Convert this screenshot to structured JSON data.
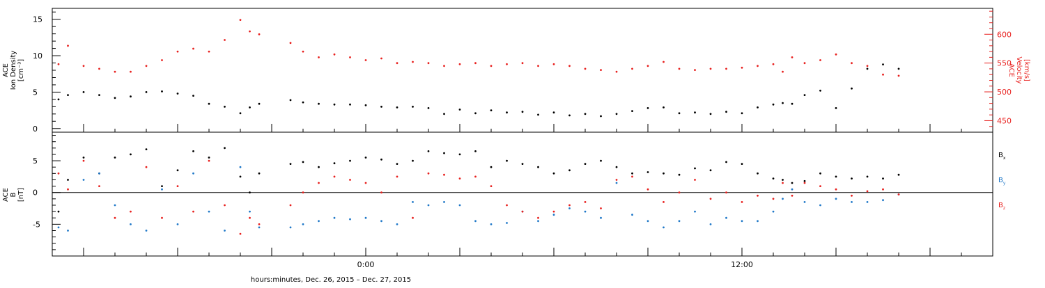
{
  "xaxis_title": "hours:minutes, Dec. 26, 2015 – Dec. 27, 2015",
  "colors": {
    "black": "#000000",
    "red": "#e8201e",
    "blue": "#1f78c8"
  },
  "chart_data": [
    {
      "type": "scatter",
      "panel": "top",
      "ylabel_left": [
        "ACE",
        "Ion Density",
        "[cm⁻³]"
      ],
      "ylabel_right": [
        "ACE",
        "Velocity",
        "[km/s]"
      ],
      "xlim": [
        -10,
        20
      ],
      "x_tick_labels": [
        {
          "x": 0,
          "label": "0:00"
        },
        {
          "x": 12,
          "label": "12:00"
        }
      ],
      "ylim_left": [
        -0.5,
        16.5
      ],
      "yticks_left": [
        0,
        5,
        10,
        15
      ],
      "ylim_right": [
        430,
        645
      ],
      "yticks_right": [
        450,
        500,
        550,
        600
      ],
      "series": [
        {
          "quantity": "ion_density",
          "axis": "left",
          "color": "#000000",
          "x": [
            -9.8,
            -9.5,
            -9.0,
            -8.5,
            -8.0,
            -7.5,
            -7.0,
            -6.5,
            -6.0,
            -5.5,
            -5.0,
            -4.5,
            -4.0,
            -3.7,
            -3.4,
            -2.4,
            -2.0,
            -1.5,
            -1.0,
            -0.5,
            0.0,
            0.5,
            1.0,
            1.5,
            2.0,
            2.5,
            3.0,
            3.5,
            4.0,
            4.5,
            5.0,
            5.5,
            6.0,
            6.5,
            7.0,
            7.5,
            8.0,
            8.5,
            9.0,
            9.5,
            10.0,
            10.5,
            11.0,
            11.5,
            12.0,
            12.5,
            13.0,
            13.3,
            13.6,
            14.0,
            14.5,
            15.0,
            15.5,
            16.0,
            16.5,
            17.0
          ],
          "y": [
            4.0,
            4.6,
            5.0,
            4.6,
            4.2,
            4.4,
            5.0,
            5.1,
            4.8,
            4.5,
            3.4,
            3.0,
            2.1,
            2.9,
            3.4,
            3.9,
            3.6,
            3.4,
            3.3,
            3.3,
            3.2,
            3.0,
            2.9,
            3.0,
            2.8,
            2.0,
            2.6,
            2.1,
            2.5,
            2.2,
            2.3,
            1.9,
            2.2,
            1.8,
            2.0,
            1.7,
            2.0,
            2.4,
            2.8,
            2.9,
            2.1,
            2.2,
            2.0,
            2.3,
            2.1,
            2.9,
            3.3,
            3.5,
            3.4,
            4.6,
            5.2,
            2.8,
            5.5,
            8.2,
            8.8,
            8.2
          ]
        },
        {
          "quantity": "velocity",
          "axis": "right",
          "color": "#e8201e",
          "x": [
            -9.8,
            -9.5,
            -9.0,
            -8.5,
            -8.0,
            -7.5,
            -7.0,
            -6.5,
            -6.0,
            -5.5,
            -5.0,
            -4.5,
            -4.0,
            -3.7,
            -3.4,
            -2.4,
            -2.0,
            -1.5,
            -1.0,
            -0.5,
            0.0,
            0.5,
            1.0,
            1.5,
            2.0,
            2.5,
            3.0,
            3.5,
            4.0,
            4.5,
            5.0,
            5.5,
            6.0,
            6.5,
            7.0,
            7.5,
            8.0,
            8.5,
            9.0,
            9.5,
            10.0,
            10.5,
            11.0,
            11.5,
            12.0,
            12.5,
            13.0,
            13.3,
            13.6,
            14.0,
            14.5,
            15.0,
            15.5,
            16.0,
            16.5,
            17.0
          ],
          "y": [
            548,
            580,
            545,
            540,
            535,
            535,
            545,
            555,
            570,
            575,
            570,
            590,
            625,
            605,
            600,
            585,
            570,
            560,
            565,
            560,
            555,
            558,
            550,
            552,
            550,
            545,
            548,
            550,
            545,
            548,
            550,
            545,
            548,
            545,
            540,
            538,
            535,
            540,
            545,
            552,
            540,
            538,
            540,
            540,
            542,
            545,
            548,
            535,
            560,
            550,
            555,
            565,
            550,
            545,
            530,
            528
          ]
        }
      ]
    },
    {
      "type": "scatter",
      "panel": "bottom",
      "ylabel_left": [
        "ACE",
        "B",
        "[nT]"
      ],
      "xlim": [
        -10,
        20
      ],
      "x_tick_labels": [
        {
          "x": 0,
          "label": "0:00"
        },
        {
          "x": 12,
          "label": "12:00"
        }
      ],
      "ylim": [
        -10,
        9.5
      ],
      "yticks": [
        -5,
        0,
        5
      ],
      "legend_position": "right",
      "series": [
        {
          "name": "Bx",
          "color": "#000000",
          "x": [
            -9.8,
            -9.5,
            -9.0,
            -8.5,
            -8.0,
            -7.5,
            -7.0,
            -6.5,
            -6.0,
            -5.5,
            -5.0,
            -4.5,
            -4.0,
            -3.7,
            -3.4,
            -2.4,
            -2.0,
            -1.5,
            -1.0,
            -0.5,
            0.0,
            0.5,
            1.0,
            1.5,
            2.0,
            2.5,
            3.0,
            3.5,
            4.0,
            4.5,
            5.0,
            5.5,
            6.0,
            6.5,
            7.0,
            7.5,
            8.0,
            8.5,
            9.0,
            9.5,
            10.0,
            10.5,
            11.0,
            11.5,
            12.0,
            12.5,
            13.0,
            13.3,
            13.6,
            14.0,
            14.5,
            15.0,
            15.5,
            16.0,
            16.5,
            17.0
          ],
          "y": [
            -3.0,
            2.0,
            5.5,
            3.0,
            5.5,
            6.0,
            6.8,
            1.0,
            3.5,
            6.5,
            5.5,
            7.0,
            2.5,
            0.0,
            3.0,
            4.5,
            4.8,
            4.0,
            4.6,
            5.0,
            5.5,
            5.2,
            4.5,
            5.0,
            6.5,
            6.2,
            6.0,
            6.5,
            4.0,
            5.0,
            4.5,
            4.0,
            3.0,
            3.5,
            4.5,
            5.0,
            4.0,
            3.0,
            3.2,
            3.0,
            2.8,
            3.8,
            3.5,
            4.8,
            4.5,
            3.0,
            2.2,
            2.0,
            1.5,
            1.8,
            3.0,
            2.5,
            2.2,
            2.5,
            2.2,
            2.8
          ]
        },
        {
          "name": "By",
          "color": "#1f78c8",
          "x": [
            -9.8,
            -9.5,
            -9.0,
            -8.5,
            -8.0,
            -7.5,
            -7.0,
            -6.5,
            -6.0,
            -5.5,
            -5.0,
            -4.5,
            -4.0,
            -3.7,
            -3.4,
            -2.4,
            -2.0,
            -1.5,
            -1.0,
            -0.5,
            0.0,
            0.5,
            1.0,
            1.5,
            2.0,
            2.5,
            3.0,
            3.5,
            4.0,
            4.5,
            5.0,
            5.5,
            6.0,
            6.5,
            7.0,
            7.5,
            8.0,
            8.5,
            9.0,
            9.5,
            10.0,
            10.5,
            11.0,
            11.5,
            12.0,
            12.5,
            13.0,
            13.3,
            13.6,
            14.0,
            14.5,
            15.0,
            15.5,
            16.0,
            16.5,
            17.0
          ],
          "y": [
            -5.5,
            -6.0,
            2.0,
            3.0,
            -2.0,
            -5.0,
            -6.0,
            0.5,
            -5.0,
            3.0,
            -3.0,
            -6.0,
            4.0,
            -3.0,
            -5.5,
            -5.5,
            -5.0,
            -4.5,
            -4.0,
            -4.2,
            -4.0,
            -4.5,
            -5.0,
            -1.5,
            -2.0,
            -1.5,
            -2.0,
            -4.5,
            -5.0,
            -4.8,
            -3.0,
            -4.5,
            -3.5,
            -2.5,
            -3.0,
            -4.0,
            1.5,
            -3.5,
            -4.5,
            -5.5,
            -4.5,
            -3.0,
            -5.0,
            -4.0,
            -4.5,
            -4.5,
            -3.0,
            -1.0,
            0.5,
            -1.5,
            -2.0,
            -1.0,
            -1.5,
            -1.5,
            -1.2,
            -0.3
          ]
        },
        {
          "name": "Bz",
          "color": "#e8201e",
          "x": [
            -9.8,
            -9.5,
            -9.0,
            -8.5,
            -8.0,
            -7.5,
            -7.0,
            -6.5,
            -6.0,
            -5.5,
            -5.0,
            -4.5,
            -4.0,
            -3.7,
            -3.4,
            -2.4,
            -2.0,
            -1.5,
            -1.0,
            -0.5,
            0.0,
            0.5,
            1.0,
            1.5,
            2.0,
            2.5,
            3.0,
            3.5,
            4.0,
            4.5,
            5.0,
            5.5,
            6.0,
            6.5,
            7.0,
            7.5,
            8.0,
            8.5,
            9.0,
            9.5,
            10.0,
            10.5,
            11.0,
            11.5,
            12.0,
            12.5,
            13.0,
            13.3,
            13.6,
            14.0,
            14.5,
            15.0,
            15.5,
            16.0,
            16.5,
            17.0
          ],
          "y": [
            3.0,
            0.5,
            5.0,
            1.0,
            -4.0,
            -3.0,
            4.0,
            -4.0,
            1.0,
            -3.0,
            5.0,
            -2.0,
            -6.5,
            -4.0,
            -5.0,
            -2.0,
            0.0,
            1.5,
            2.5,
            2.0,
            1.5,
            0.0,
            2.5,
            -4.0,
            3.0,
            2.8,
            2.2,
            2.5,
            1.0,
            -2.0,
            -3.0,
            -4.0,
            -3.0,
            -2.0,
            -1.5,
            -2.5,
            2.0,
            2.5,
            0.5,
            -1.5,
            0.0,
            2.0,
            -1.0,
            0.0,
            -1.5,
            -0.5,
            -1.0,
            1.5,
            -0.5,
            1.5,
            1.0,
            0.5,
            -0.5,
            0.2,
            0.5,
            -0.3
          ]
        }
      ]
    }
  ]
}
